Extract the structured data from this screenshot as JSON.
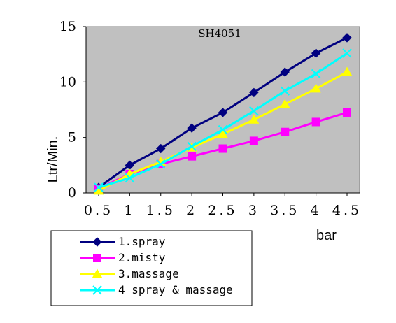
{
  "chart_data": {
    "type": "line",
    "title": "SH4051",
    "xlabel": "bar",
    "ylabel": "Ltr/Min.",
    "x": [
      0.5,
      1,
      1.5,
      2,
      2.5,
      3,
      3.5,
      4,
      4.5
    ],
    "x_tick_labels": [
      "0.5",
      "1",
      "1.5",
      "2",
      "2.5",
      "3",
      "3.5",
      "4",
      "4.5"
    ],
    "y_tick_labels": [
      "0",
      "5",
      "10",
      "15"
    ],
    "ylim": [
      0,
      15
    ],
    "grid": false,
    "legend_position": "bottom",
    "plot_background": "#c0c0c0",
    "series": [
      {
        "name": "1.spray",
        "color": "#000080",
        "marker": "diamond",
        "values": [
          0.5,
          2.5,
          4.0,
          5.85,
          7.25,
          9.05,
          10.9,
          12.6,
          14.0
        ]
      },
      {
        "name": "2.misty",
        "color": "#ff00ff",
        "marker": "square",
        "values": [
          0.4,
          1.7,
          2.6,
          3.3,
          4.0,
          4.7,
          5.5,
          6.4,
          7.25
        ]
      },
      {
        "name": "3.massage",
        "color": "#ffff00",
        "marker": "triangle",
        "values": [
          0.2,
          1.7,
          2.8,
          4.1,
          5.3,
          6.6,
          8.0,
          9.4,
          10.9
        ]
      },
      {
        "name": "4 spray & massage",
        "color": "#00ffff",
        "marker": "x",
        "values": [
          0.5,
          1.35,
          2.6,
          4.2,
          5.7,
          7.4,
          9.2,
          10.75,
          12.6
        ]
      }
    ]
  }
}
